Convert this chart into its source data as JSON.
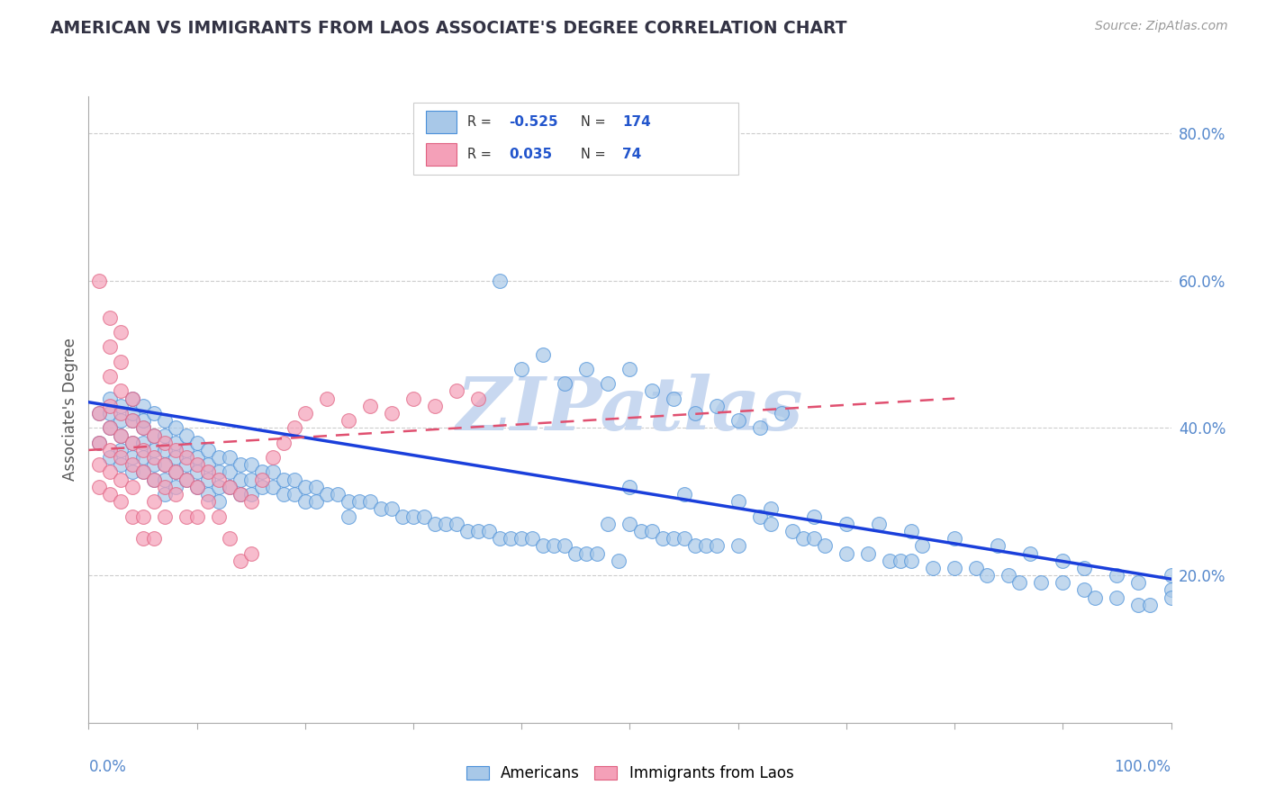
{
  "title": "AMERICAN VS IMMIGRANTS FROM LAOS ASSOCIATE'S DEGREE CORRELATION CHART",
  "source_text": "Source: ZipAtlas.com",
  "ylabel": "Associate's Degree",
  "right_ytick_labels": [
    "20.0%",
    "40.0%",
    "60.0%",
    "80.0%"
  ],
  "right_ytick_vals": [
    0.2,
    0.4,
    0.6,
    0.8
  ],
  "legend_labels": [
    "Americans",
    "Immigrants from Laos"
  ],
  "blue_color": "#a8c8e8",
  "pink_color": "#f4a0b8",
  "blue_edge_color": "#4a90d9",
  "pink_edge_color": "#e06080",
  "blue_line_color": "#1a3fdb",
  "pink_line_color": "#e05070",
  "title_color": "#333344",
  "source_color": "#999999",
  "watermark_color": "#c8d8f0",
  "watermark_text": "ZIPatlas",
  "xlim": [
    0.0,
    1.0
  ],
  "ylim": [
    0.0,
    0.85
  ],
  "blue_trend_x": [
    0.0,
    1.0
  ],
  "blue_trend_y": [
    0.435,
    0.195
  ],
  "pink_trend_x": [
    0.0,
    0.8
  ],
  "pink_trend_y": [
    0.37,
    0.44
  ],
  "blue_x": [
    0.01,
    0.01,
    0.02,
    0.02,
    0.02,
    0.02,
    0.03,
    0.03,
    0.03,
    0.03,
    0.03,
    0.04,
    0.04,
    0.04,
    0.04,
    0.04,
    0.04,
    0.05,
    0.05,
    0.05,
    0.05,
    0.05,
    0.05,
    0.06,
    0.06,
    0.06,
    0.06,
    0.06,
    0.07,
    0.07,
    0.07,
    0.07,
    0.07,
    0.07,
    0.08,
    0.08,
    0.08,
    0.08,
    0.08,
    0.09,
    0.09,
    0.09,
    0.09,
    0.1,
    0.1,
    0.1,
    0.1,
    0.11,
    0.11,
    0.11,
    0.11,
    0.12,
    0.12,
    0.12,
    0.12,
    0.13,
    0.13,
    0.13,
    0.14,
    0.14,
    0.14,
    0.15,
    0.15,
    0.15,
    0.16,
    0.16,
    0.17,
    0.17,
    0.18,
    0.18,
    0.19,
    0.19,
    0.2,
    0.2,
    0.21,
    0.21,
    0.22,
    0.23,
    0.24,
    0.24,
    0.25,
    0.26,
    0.27,
    0.28,
    0.29,
    0.3,
    0.31,
    0.32,
    0.33,
    0.34,
    0.35,
    0.36,
    0.37,
    0.38,
    0.39,
    0.4,
    0.41,
    0.42,
    0.43,
    0.44,
    0.45,
    0.46,
    0.47,
    0.48,
    0.49,
    0.5,
    0.51,
    0.52,
    0.53,
    0.54,
    0.55,
    0.56,
    0.57,
    0.58,
    0.6,
    0.62,
    0.63,
    0.65,
    0.66,
    0.67,
    0.68,
    0.7,
    0.72,
    0.74,
    0.75,
    0.76,
    0.77,
    0.78,
    0.8,
    0.82,
    0.83,
    0.85,
    0.86,
    0.88,
    0.9,
    0.92,
    0.93,
    0.95,
    0.97,
    0.98,
    1.0,
    1.0,
    0.5,
    0.55,
    0.6,
    0.63,
    0.67,
    0.7,
    0.73,
    0.76,
    0.8,
    0.84,
    0.87,
    0.9,
    0.92,
    0.95,
    0.97,
    1.0,
    0.38,
    0.4,
    0.42,
    0.44,
    0.46,
    0.48,
    0.5,
    0.52,
    0.54,
    0.56,
    0.58,
    0.6,
    0.62,
    0.64
  ],
  "blue_y": [
    0.42,
    0.38,
    0.44,
    0.4,
    0.36,
    0.42,
    0.43,
    0.41,
    0.39,
    0.37,
    0.35,
    0.44,
    0.41,
    0.38,
    0.36,
    0.34,
    0.42,
    0.43,
    0.4,
    0.38,
    0.36,
    0.34,
    0.41,
    0.42,
    0.39,
    0.37,
    0.35,
    0.33,
    0.41,
    0.39,
    0.37,
    0.35,
    0.33,
    0.31,
    0.4,
    0.38,
    0.36,
    0.34,
    0.32,
    0.39,
    0.37,
    0.35,
    0.33,
    0.38,
    0.36,
    0.34,
    0.32,
    0.37,
    0.35,
    0.33,
    0.31,
    0.36,
    0.34,
    0.32,
    0.3,
    0.36,
    0.34,
    0.32,
    0.35,
    0.33,
    0.31,
    0.35,
    0.33,
    0.31,
    0.34,
    0.32,
    0.34,
    0.32,
    0.33,
    0.31,
    0.33,
    0.31,
    0.32,
    0.3,
    0.32,
    0.3,
    0.31,
    0.31,
    0.3,
    0.28,
    0.3,
    0.3,
    0.29,
    0.29,
    0.28,
    0.28,
    0.28,
    0.27,
    0.27,
    0.27,
    0.26,
    0.26,
    0.26,
    0.25,
    0.25,
    0.25,
    0.25,
    0.24,
    0.24,
    0.24,
    0.23,
    0.23,
    0.23,
    0.27,
    0.22,
    0.27,
    0.26,
    0.26,
    0.25,
    0.25,
    0.25,
    0.24,
    0.24,
    0.24,
    0.24,
    0.28,
    0.27,
    0.26,
    0.25,
    0.25,
    0.24,
    0.23,
    0.23,
    0.22,
    0.22,
    0.22,
    0.24,
    0.21,
    0.21,
    0.21,
    0.2,
    0.2,
    0.19,
    0.19,
    0.19,
    0.18,
    0.17,
    0.17,
    0.16,
    0.16,
    0.2,
    0.18,
    0.32,
    0.31,
    0.3,
    0.29,
    0.28,
    0.27,
    0.27,
    0.26,
    0.25,
    0.24,
    0.23,
    0.22,
    0.21,
    0.2,
    0.19,
    0.17,
    0.6,
    0.48,
    0.5,
    0.46,
    0.48,
    0.46,
    0.48,
    0.45,
    0.44,
    0.42,
    0.43,
    0.41,
    0.4,
    0.42
  ],
  "pink_x": [
    0.01,
    0.01,
    0.01,
    0.01,
    0.01,
    0.02,
    0.02,
    0.02,
    0.02,
    0.02,
    0.02,
    0.02,
    0.02,
    0.03,
    0.03,
    0.03,
    0.03,
    0.03,
    0.03,
    0.03,
    0.03,
    0.04,
    0.04,
    0.04,
    0.04,
    0.04,
    0.04,
    0.05,
    0.05,
    0.05,
    0.05,
    0.05,
    0.06,
    0.06,
    0.06,
    0.06,
    0.06,
    0.07,
    0.07,
    0.07,
    0.07,
    0.08,
    0.08,
    0.08,
    0.09,
    0.09,
    0.09,
    0.1,
    0.1,
    0.1,
    0.11,
    0.11,
    0.12,
    0.12,
    0.13,
    0.13,
    0.14,
    0.14,
    0.15,
    0.15,
    0.16,
    0.17,
    0.18,
    0.19,
    0.2,
    0.22,
    0.24,
    0.26,
    0.28,
    0.3,
    0.32,
    0.34,
    0.36
  ],
  "pink_y": [
    0.42,
    0.38,
    0.35,
    0.32,
    0.6,
    0.43,
    0.4,
    0.37,
    0.34,
    0.31,
    0.47,
    0.51,
    0.55,
    0.42,
    0.39,
    0.36,
    0.33,
    0.3,
    0.45,
    0.49,
    0.53,
    0.41,
    0.38,
    0.35,
    0.32,
    0.28,
    0.44,
    0.4,
    0.37,
    0.34,
    0.28,
    0.25,
    0.39,
    0.36,
    0.33,
    0.3,
    0.25,
    0.38,
    0.35,
    0.32,
    0.28,
    0.37,
    0.34,
    0.31,
    0.36,
    0.33,
    0.28,
    0.35,
    0.32,
    0.28,
    0.34,
    0.3,
    0.33,
    0.28,
    0.32,
    0.25,
    0.31,
    0.22,
    0.3,
    0.23,
    0.33,
    0.36,
    0.38,
    0.4,
    0.42,
    0.44,
    0.41,
    0.43,
    0.42,
    0.44,
    0.43,
    0.45,
    0.44
  ],
  "fig_bg": "#ffffff",
  "axes_bg": "#ffffff",
  "grid_color": "#cccccc"
}
